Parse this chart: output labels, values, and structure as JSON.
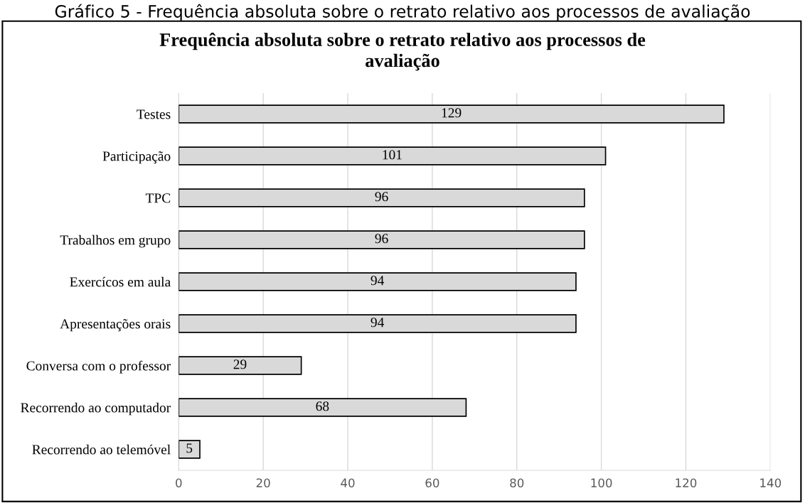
{
  "chart_data": {
    "type": "bar",
    "orientation": "horizontal",
    "title": "Frequência absoluta sobre o retrato relativo aos processos de\navaliação",
    "annotations": [
      "Gráfico 5 - Frequência absoluta sobre o retrato relativo aos processos de avaliação"
    ],
    "categories": [
      "Testes",
      "Participação",
      "TPC",
      "Trabalhos em grupo",
      "Exercícos em aula",
      "Apresentações orais",
      "Conversa com o professor",
      "Recorrendo ao computador",
      "Recorrendo ao telemóvel"
    ],
    "values": [
      129,
      101,
      96,
      96,
      94,
      94,
      29,
      68,
      5
    ],
    "color": "#d9d9d9",
    "data_labels": true,
    "xlim": [
      0,
      140
    ],
    "xticks": [
      0,
      20,
      40,
      60,
      80,
      100,
      120,
      140
    ],
    "grid": "x",
    "legend": false
  }
}
